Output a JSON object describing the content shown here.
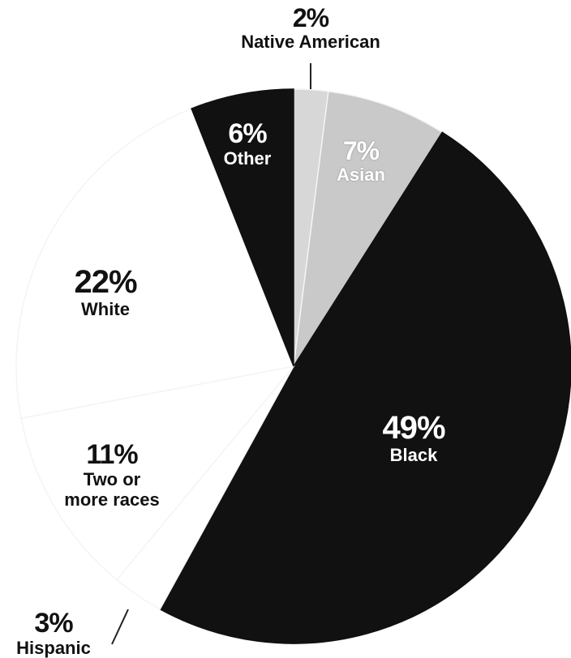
{
  "chart_data": {
    "type": "pie",
    "slices": [
      {
        "label": "Native American",
        "pct_label": "2%",
        "value": 2,
        "color": "#d7d7d7"
      },
      {
        "label": "Asian",
        "pct_label": "7%",
        "value": 7,
        "color": "#c9c9c9"
      },
      {
        "label": "Black",
        "pct_label": "49%",
        "value": 49,
        "color": "#111111"
      },
      {
        "label": "Hispanic",
        "pct_label": "3%",
        "value": 3,
        "color": "#ffffff"
      },
      {
        "label": "Two or more races",
        "label_lines": [
          "Two or",
          "more races"
        ],
        "pct_label": "11%",
        "value": 11,
        "color": "#ffffff"
      },
      {
        "label": "White",
        "pct_label": "22%",
        "value": 22,
        "color": "#ffffff"
      },
      {
        "label": "Other",
        "pct_label": "6%",
        "value": 6,
        "color": "#111111"
      }
    ]
  }
}
